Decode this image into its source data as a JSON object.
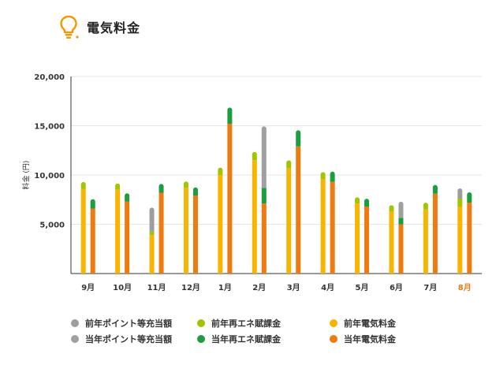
{
  "header": {
    "title": "電気料金",
    "icon": "lightbulb-icon",
    "icon_color": "#f39800"
  },
  "colors": {
    "prev_point": "#9e9e9e",
    "curr_point": "#a0a0a0",
    "prev_renew": "#a4c400",
    "curr_renew": "#1a9e3f",
    "prev_elec": "#f7b500",
    "curr_elec": "#ef7a10",
    "highlight_label": "#ef7a10"
  },
  "legend": [
    {
      "label": "前年ポイント等充当額",
      "color_key": "prev_point"
    },
    {
      "label": "前年再エネ賦課金",
      "color_key": "prev_renew"
    },
    {
      "label": "前年電気料金",
      "color_key": "prev_elec"
    },
    {
      "label": "当年ポイント等充当額",
      "color_key": "curr_point"
    },
    {
      "label": "当年再エネ賦課金",
      "color_key": "curr_renew"
    },
    {
      "label": "当年電気料金",
      "color_key": "curr_elec"
    }
  ],
  "chart_data": {
    "type": "bar",
    "stacked": true,
    "ylabel": "料金 (円)",
    "ylim": [
      0,
      20000
    ],
    "yticks": [
      "5,000",
      "10,000",
      "15,000",
      "20,000"
    ],
    "grid": true,
    "highlight_category": "8月",
    "categories": [
      "9月",
      "10月",
      "11月",
      "12月",
      "1月",
      "2月",
      "3月",
      "4月",
      "5月",
      "6月",
      "7月",
      "8月"
    ],
    "series": [
      {
        "name": "前年電気料金",
        "group": "prev",
        "color_key": "prev_elec",
        "values": [
          8600,
          8500,
          3900,
          8700,
          10000,
          11500,
          10700,
          9600,
          7100,
          6300,
          6500,
          6800
        ]
      },
      {
        "name": "前年再エネ賦課金",
        "group": "prev",
        "color_key": "prev_renew",
        "values": [
          450,
          400,
          350,
          400,
          500,
          600,
          550,
          450,
          400,
          400,
          450,
          800
        ]
      },
      {
        "name": "前年ポイント等充当額",
        "group": "prev",
        "color_key": "prev_point",
        "values": [
          0,
          0,
          2200,
          0,
          0,
          0,
          0,
          0,
          0,
          0,
          0,
          800
        ]
      },
      {
        "name": "当年電気料金",
        "group": "curr",
        "color_key": "curr_elec",
        "values": [
          6600,
          7300,
          8200,
          7900,
          15200,
          7100,
          12900,
          9300,
          6800,
          5000,
          8100,
          7200
        ]
      },
      {
        "name": "当年再エネ賦課金",
        "group": "curr",
        "color_key": "curr_renew",
        "values": [
          700,
          600,
          650,
          600,
          1400,
          1600,
          1400,
          800,
          550,
          650,
          650,
          800
        ]
      },
      {
        "name": "当年ポイント等充当額",
        "group": "curr",
        "color_key": "curr_point",
        "values": [
          0,
          0,
          0,
          0,
          0,
          6000,
          0,
          0,
          0,
          1400,
          0,
          0
        ]
      }
    ]
  }
}
